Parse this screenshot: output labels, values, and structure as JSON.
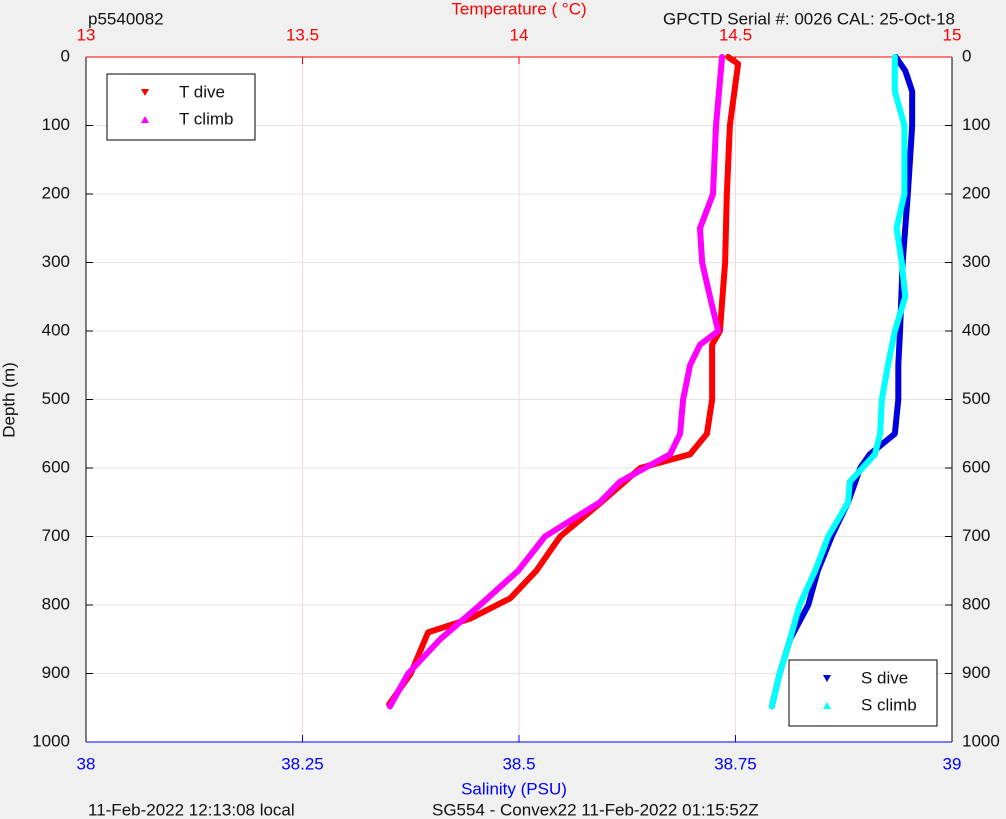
{
  "chart_data": {
    "type": "line",
    "title_left": "p5540082",
    "x2label": "Temperature (   °C)",
    "title_right": "GPCTD Serial #: 0026 CAL: 25-Oct-18",
    "ylabel": "Depth (m)",
    "xlabel": "Salinity (PSU)",
    "footer_left": "11-Feb-2022 12:13:08 local",
    "footer_center": "SG554 - Convex22 11-Feb-2022 01:15:52Z",
    "ylim": [
      0,
      1000
    ],
    "y_inverted": true,
    "yticks": [
      0,
      100,
      200,
      300,
      400,
      500,
      600,
      700,
      800,
      900,
      1000
    ],
    "xlim": [
      38,
      39
    ],
    "xticks": [
      38,
      38.25,
      38.5,
      38.75,
      39
    ],
    "x2lim": [
      13,
      15
    ],
    "x2ticks": [
      13,
      13.5,
      14,
      14.5,
      15
    ],
    "grid": true,
    "series": [
      {
        "name": "T dive",
        "color": "#ff0000",
        "axis": "x2",
        "legend_loc": "upper left",
        "x": [
          14.483,
          14.506,
          14.487,
          14.48,
          14.476,
          14.464,
          14.446,
          14.446,
          14.434,
          14.395,
          14.28,
          14.19,
          14.095,
          14.04,
          13.98,
          13.887,
          13.79,
          13.75,
          13.7
        ],
        "values": [
          0,
          10,
          100,
          200,
          300,
          400,
          420,
          500,
          550,
          580,
          600,
          650,
          700,
          750,
          790,
          820,
          840,
          900,
          945
        ]
      },
      {
        "name": "T climb",
        "color": "#ff00ff",
        "axis": "x2",
        "legend_loc": "upper left",
        "x": [
          14.469,
          14.455,
          14.448,
          14.418,
          14.423,
          14.441,
          14.46,
          14.418,
          14.395,
          14.379,
          14.372,
          14.349,
          14.233,
          14.187,
          14.06,
          13.998,
          13.91,
          13.818,
          13.744,
          13.702
        ],
        "values": [
          0,
          100,
          200,
          250,
          300,
          350,
          400,
          420,
          450,
          500,
          550,
          580,
          620,
          650,
          700,
          750,
          800,
          850,
          900,
          948
        ]
      },
      {
        "name": "S dive",
        "color": "#0000dd",
        "legend_loc": "lower right",
        "x": [
          38.935,
          38.946,
          38.954,
          38.954,
          38.949,
          38.946,
          38.943,
          38.94,
          38.938,
          38.938,
          38.934,
          38.905,
          38.894,
          38.88,
          38.861,
          38.845,
          38.834,
          38.813,
          38.801,
          38.792
        ],
        "values": [
          0,
          20,
          50,
          100,
          200,
          250,
          300,
          400,
          450,
          500,
          550,
          580,
          600,
          650,
          700,
          750,
          800,
          850,
          900,
          948
        ]
      },
      {
        "name": "S climb",
        "color": "#00ffff",
        "legend_loc": "lower right",
        "x": [
          38.934,
          38.934,
          38.945,
          38.945,
          38.936,
          38.942,
          38.946,
          38.934,
          38.926,
          38.919,
          38.917,
          38.911,
          38.882,
          38.88,
          38.857,
          38.842,
          38.824,
          38.813,
          38.801,
          38.792
        ],
        "values": [
          0,
          50,
          100,
          200,
          250,
          300,
          350,
          400,
          450,
          500,
          550,
          580,
          620,
          650,
          700,
          750,
          800,
          850,
          900,
          948
        ]
      }
    ]
  }
}
